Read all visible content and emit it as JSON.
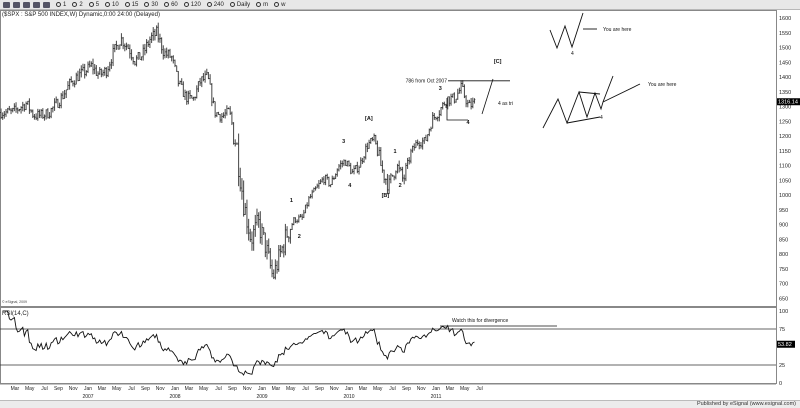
{
  "toolbar": {
    "icons": [
      "save-icon",
      "layout-icon",
      "print-icon",
      "settings-icon",
      "crosshair-icon"
    ],
    "intervals": [
      "1",
      "2",
      "5",
      "10",
      "15",
      "30",
      "60",
      "120",
      "240",
      "Daily",
      "m",
      "w"
    ]
  },
  "chart_data": {
    "type": "ohlc",
    "title": "($SPX : S&P 500 INDEX,W) Dynamic,0:00 24:00 (Delayed)",
    "copyright": "© eSignal, 2009",
    "price_label": "1316.14",
    "price_ylim": [
      650,
      1600
    ],
    "price_ticks": [
      1600,
      1550,
      1500,
      1450,
      1400,
      1350,
      1300,
      1250,
      1200,
      1150,
      1100,
      1050,
      1000,
      950,
      900,
      850,
      800,
      750,
      700,
      650
    ],
    "monthly_close_start": "2006-01",
    "monthly_close": [
      1280,
      1281,
      1295,
      1311,
      1270,
      1270,
      1277,
      1304,
      1336,
      1378,
      1401,
      1418,
      1438,
      1407,
      1421,
      1482,
      1531,
      1503,
      1455,
      1474,
      1527,
      1549,
      1481,
      1468,
      1379,
      1331,
      1323,
      1386,
      1400,
      1280,
      1267,
      1283,
      1166,
      969,
      850,
      903,
      826,
      720,
      798,
      873,
      919,
      919,
      987,
      1021,
      1057,
      1036,
      1096,
      1115,
      1074,
      1104,
      1169,
      1187,
      1089,
      1031,
      1102,
      1049,
      1141,
      1183,
      1181,
      1258,
      1286,
      1327,
      1326,
      1364,
      1300,
      1316.14
    ],
    "x_ticks": [
      {
        "label": "Mar",
        "date": 2006.16
      },
      {
        "label": "May",
        "date": 2006.33
      },
      {
        "label": "Jul",
        "date": 2006.5
      },
      {
        "label": "Sep",
        "date": 2006.66
      },
      {
        "label": "Nov",
        "date": 2006.83
      },
      {
        "label": "Jan",
        "date": 2007.0,
        "year": "2007"
      },
      {
        "label": "Mar",
        "date": 2007.16
      },
      {
        "label": "May",
        "date": 2007.33
      },
      {
        "label": "Jul",
        "date": 2007.5
      },
      {
        "label": "Sep",
        "date": 2007.66
      },
      {
        "label": "Nov",
        "date": 2007.83
      },
      {
        "label": "Jan",
        "date": 2008.0,
        "year": "2008"
      },
      {
        "label": "Mar",
        "date": 2008.16
      },
      {
        "label": "May",
        "date": 2008.33
      },
      {
        "label": "Jul",
        "date": 2008.5
      },
      {
        "label": "Sep",
        "date": 2008.66
      },
      {
        "label": "Nov",
        "date": 2008.83
      },
      {
        "label": "Jan",
        "date": 2009.0,
        "year": "2009"
      },
      {
        "label": "Mar",
        "date": 2009.16
      },
      {
        "label": "May",
        "date": 2009.33
      },
      {
        "label": "Jul",
        "date": 2009.5
      },
      {
        "label": "Sep",
        "date": 2009.66
      },
      {
        "label": "Nov",
        "date": 2009.83
      },
      {
        "label": "Jan",
        "date": 2010.0,
        "year": "2010"
      },
      {
        "label": "Mar",
        "date": 2010.16
      },
      {
        "label": "May",
        "date": 2010.33
      },
      {
        "label": "Jul",
        "date": 2010.5
      },
      {
        "label": "Sep",
        "date": 2010.66
      },
      {
        "label": "Nov",
        "date": 2010.83
      },
      {
        "label": "Jan",
        "date": 2011.0,
        "year": "2011"
      },
      {
        "label": "Mar",
        "date": 2011.16
      },
      {
        "label": "May",
        "date": 2011.33
      },
      {
        "label": "Jul",
        "date": 2011.5
      }
    ],
    "wave_labels": [
      {
        "text": "1",
        "date": 2009.35,
        "price": 976
      },
      {
        "text": "2",
        "date": 2009.44,
        "price": 854
      },
      {
        "text": "3",
        "date": 2009.95,
        "price": 1176
      },
      {
        "text": "4",
        "date": 2010.02,
        "price": 1027
      },
      {
        "text": "[A]",
        "date": 2010.24,
        "price": 1254
      },
      {
        "text": "[B]",
        "date": 2010.43,
        "price": 993
      },
      {
        "text": "1",
        "date": 2010.54,
        "price": 1142
      },
      {
        "text": "2",
        "date": 2010.6,
        "price": 1027
      },
      {
        "text": "3",
        "date": 2011.06,
        "price": 1356
      },
      {
        "text": "4",
        "date": 2011.38,
        "price": 1240
      },
      {
        "text": "[C]",
        "date": 2011.72,
        "price": 1447
      }
    ],
    "annotations": {
      "fib_text": "786 from Oct 2007",
      "fib_level": 1387,
      "triangle_text": "4 as tri",
      "sketch1_text": "You are here",
      "sketch1_label": "4",
      "sketch2_text": "You are here",
      "sketch2_label": "4"
    },
    "rsi": {
      "label": "RSI(14,C)",
      "period": 14,
      "value_label": "53.82",
      "ylim": [
        0,
        100
      ],
      "ticks": [
        100,
        75,
        25,
        0
      ],
      "levels": [
        75,
        25
      ],
      "note": "Watch this for divergence"
    }
  },
  "footer": "Published by eSignal (www.esignal.com)"
}
